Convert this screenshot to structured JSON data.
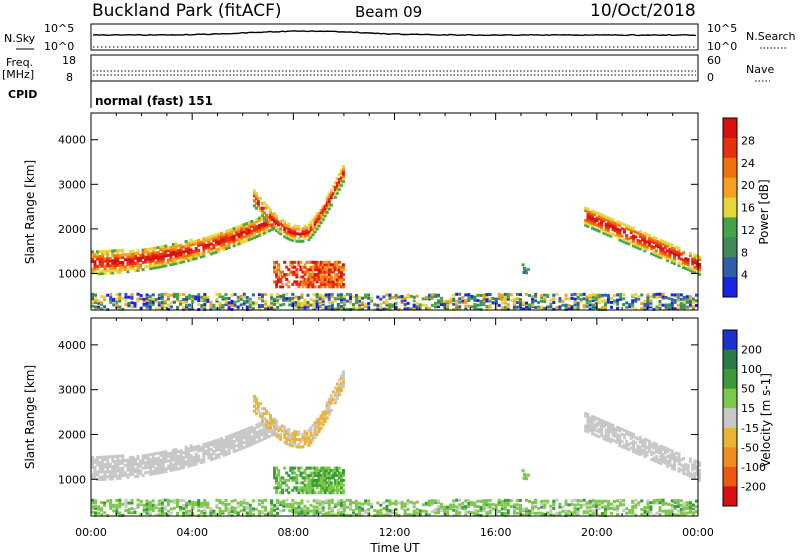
{
  "header": {
    "station": "Buckland Park (fitACF)",
    "beam": "Beam 09",
    "date": "10/Oct/2018"
  },
  "noise_panel": {
    "left_label": "N.Sky",
    "left_ticks": [
      "10^5",
      "10^0"
    ],
    "right_label": "N.Search",
    "right_ticks": [
      "10^5",
      "10^0"
    ]
  },
  "freq_panel": {
    "label_line1": "Freq.",
    "label_line2": "[MHz]",
    "left_ticks": [
      "18",
      "8"
    ],
    "right_label": "Nave",
    "right_ticks": [
      "60",
      "0"
    ]
  },
  "cpid_panel": {
    "label": "CPID",
    "program": "normal (fast) 151"
  },
  "colors": {
    "power": [
      "#1a23e6",
      "#2f5fa8",
      "#3f8a5a",
      "#43a548",
      "#e7d53a",
      "#f5a020",
      "#f07010",
      "#e83010",
      "#d81010"
    ],
    "velocity": [
      "#1c2fcf",
      "#2a7a4a",
      "#3a9a3a",
      "#7cc84a",
      "#c8c8c8",
      "#e9b431",
      "#f28c1e",
      "#ec5a12",
      "#d81010"
    ]
  },
  "chart_data": [
    {
      "type": "heatmap",
      "name": "power",
      "xlabel": "Time UT",
      "ylabel": "Slant Range [km]",
      "x_ticks": [
        "00:00",
        "04:00",
        "08:00",
        "12:00",
        "16:00",
        "20:00",
        "00:00"
      ],
      "y_ticks": [
        "1000",
        "2000",
        "3000",
        "4000"
      ],
      "xlim_hours": [
        0,
        24
      ],
      "ylim_km": [
        180,
        4600
      ],
      "colorbar_label": "Power [dB]",
      "colorbar_ticks": [
        "4",
        "8",
        "12",
        "16",
        "20",
        "24",
        "28"
      ],
      "regions": [
        {
          "desc": "morning range band",
          "time": [
            "00:00",
            "07:00"
          ],
          "range_km": [
            1000,
            2300
          ],
          "power_db": [
            12,
            26
          ]
        },
        {
          "desc": "ionospheric arc",
          "time": [
            "06:30",
            "09:30"
          ],
          "range_km": [
            1800,
            3400
          ],
          "power_db": [
            12,
            28
          ]
        },
        {
          "desc": "scatter patch",
          "time": [
            "07:00",
            "10:00"
          ],
          "range_km": [
            700,
            1300
          ],
          "power_db": [
            16,
            30
          ]
        },
        {
          "desc": "near-range clutter",
          "time": [
            "00:00",
            "24:00"
          ],
          "range_km": [
            180,
            500
          ],
          "power_db": [
            4,
            20
          ]
        },
        {
          "desc": "evening descending band",
          "time": [
            "19:30",
            "24:00"
          ],
          "range_km": [
            1000,
            2400
          ],
          "power_db": [
            12,
            28
          ]
        }
      ]
    },
    {
      "type": "heatmap",
      "name": "velocity",
      "xlabel": "Time UT",
      "ylabel": "Slant Range [km]",
      "x_ticks": [
        "00:00",
        "04:00",
        "08:00",
        "12:00",
        "16:00",
        "20:00",
        "00:00"
      ],
      "y_ticks": [
        "1000",
        "2000",
        "3000",
        "4000"
      ],
      "xlim_hours": [
        0,
        24
      ],
      "ylim_km": [
        180,
        4600
      ],
      "colorbar_label": "Velocity [m s-1]",
      "colorbar_ticks": [
        "200",
        "100",
        "50",
        "15",
        "-15",
        "-50",
        "-100",
        "-200"
      ],
      "regions": [
        {
          "desc": "morning range band",
          "time": [
            "00:00",
            "07:00"
          ],
          "range_km": [
            1000,
            2300
          ],
          "velocity": "near 0 (grey)"
        },
        {
          "desc": "ionospheric arc",
          "time": [
            "06:30",
            "09:30"
          ],
          "range_km": [
            1800,
            3400
          ],
          "velocity": [
            -50,
            -15
          ]
        },
        {
          "desc": "scatter patch",
          "time": [
            "07:00",
            "10:00"
          ],
          "range_km": [
            700,
            1300
          ],
          "velocity": [
            15,
            50
          ]
        },
        {
          "desc": "near-range clutter",
          "time": [
            "00:00",
            "24:00"
          ],
          "range_km": [
            180,
            500
          ],
          "velocity": [
            15,
            50
          ]
        },
        {
          "desc": "evening descending band",
          "time": [
            "19:30",
            "24:00"
          ],
          "range_km": [
            1000,
            2400
          ],
          "velocity": "near 0 (grey)"
        }
      ]
    }
  ]
}
